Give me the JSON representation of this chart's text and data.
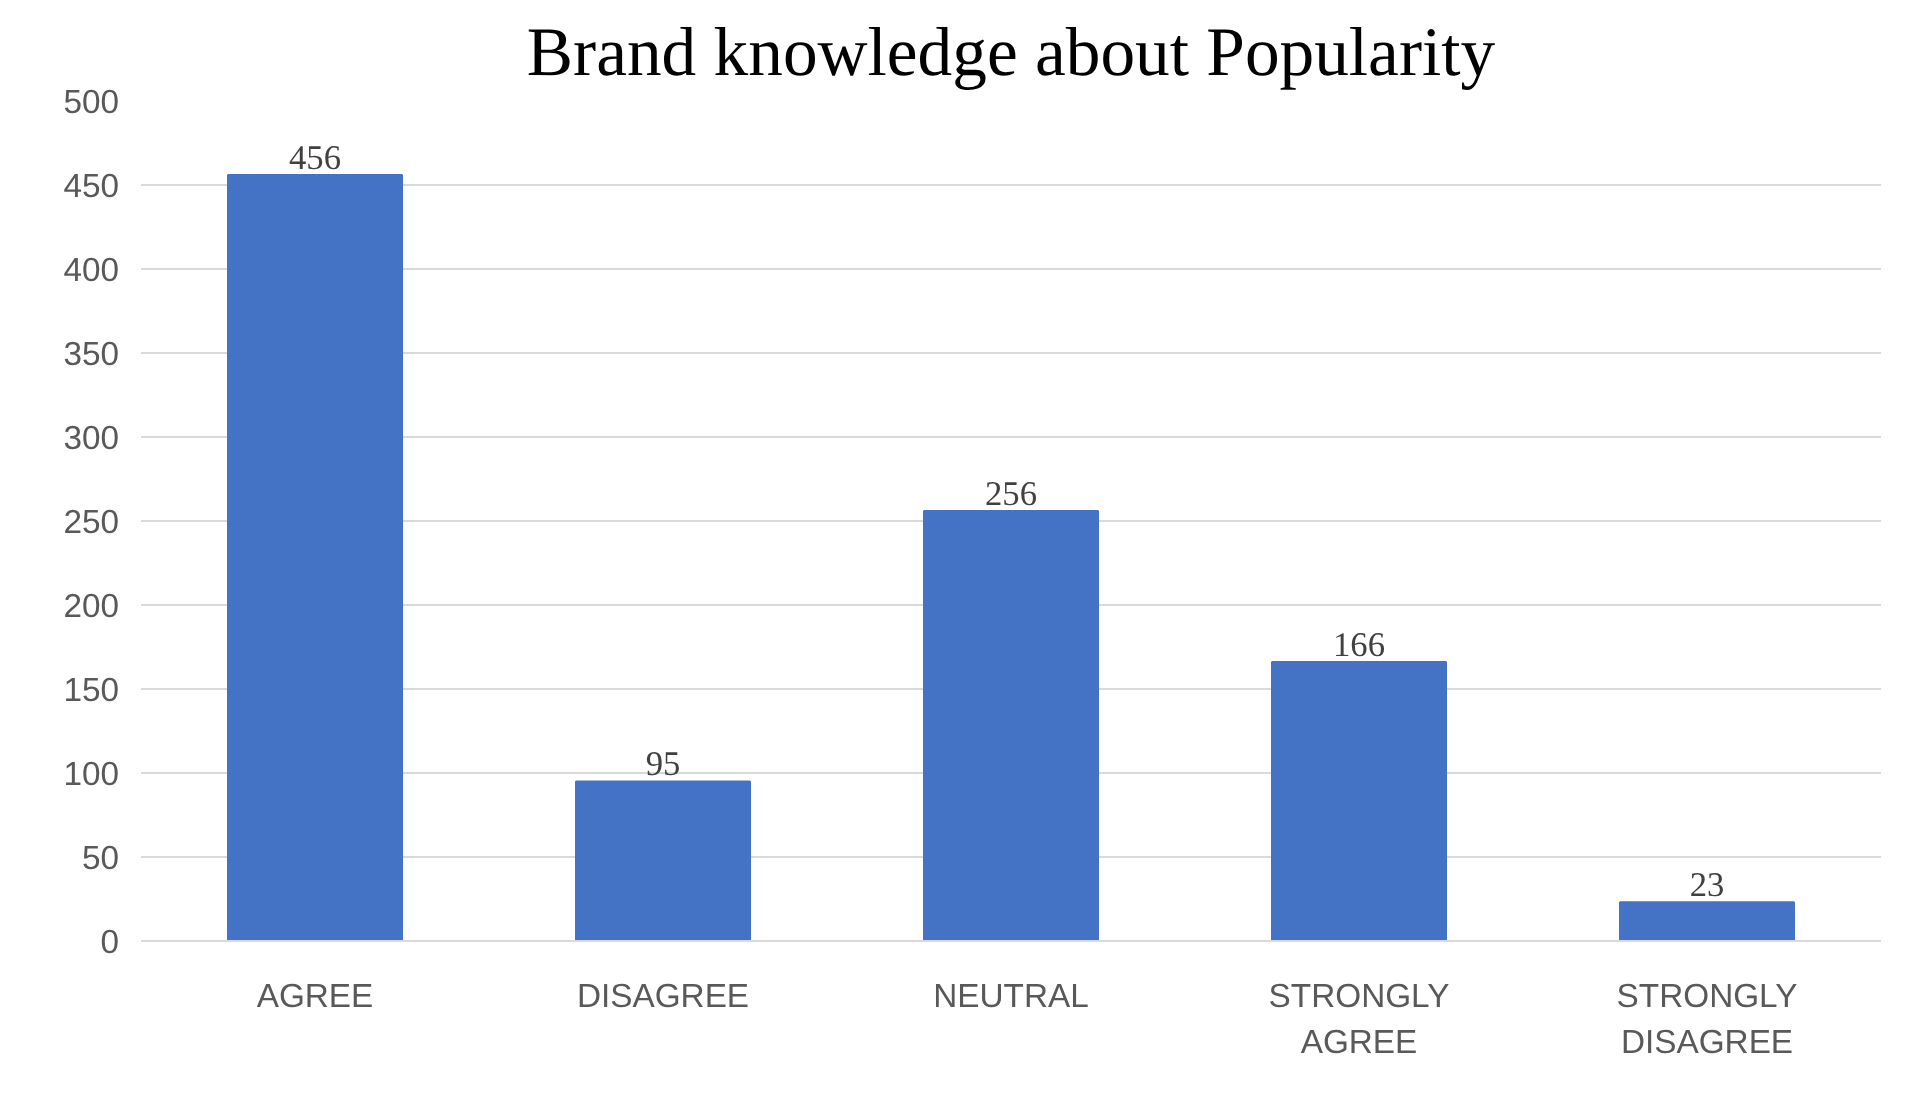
{
  "chart_data": {
    "type": "bar",
    "title": "Brand knowledge about Popularity",
    "categories": [
      "AGREE",
      "DISAGREE",
      "NEUTRAL",
      "STRONGLY AGREE",
      "STRONGLY DISAGREE"
    ],
    "values": [
      456,
      95,
      256,
      166,
      23
    ],
    "color": "#4472c4",
    "ylim": [
      0,
      500
    ],
    "yticks": [
      0,
      50,
      100,
      150,
      200,
      250,
      300,
      350,
      400,
      450,
      500
    ],
    "grid": "y",
    "data_labels": true
  }
}
